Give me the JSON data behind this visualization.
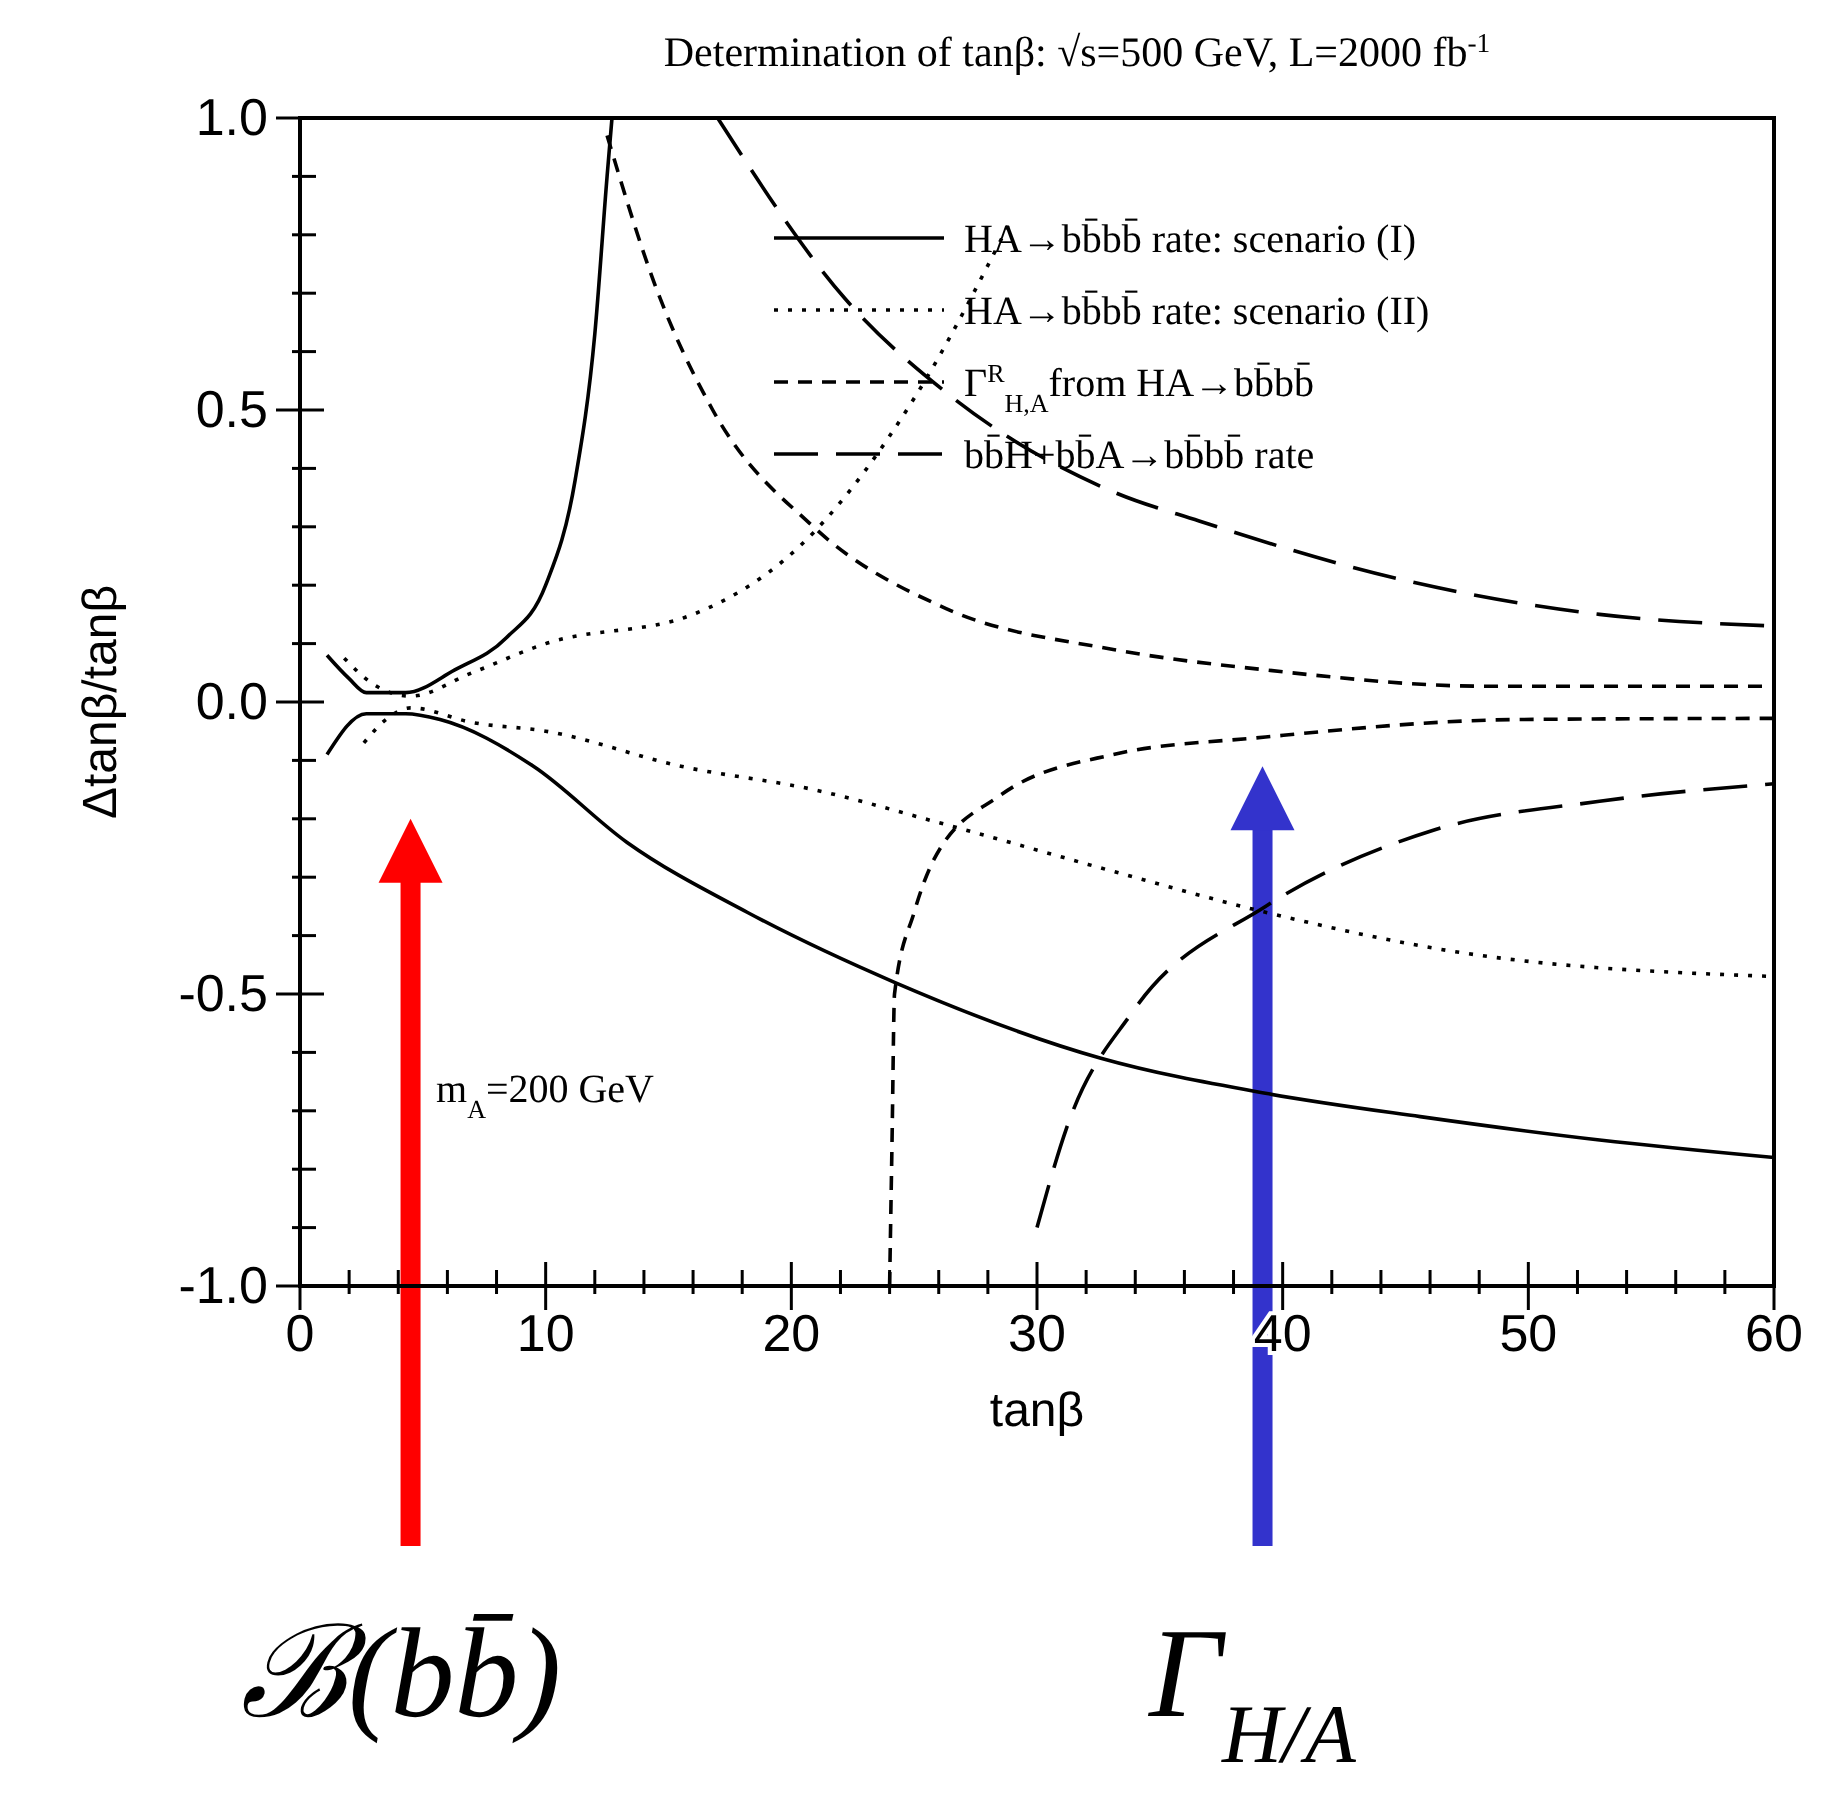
{
  "chart_data": {
    "type": "line",
    "title": "Determination of tanβ: √s=500 GeV, L=2000 fb$^{-1}$",
    "xlabel": "tanβ",
    "ylabel": "Δtanβ/tanβ",
    "xlim": [
      0,
      60
    ],
    "ylim": [
      -1,
      1
    ],
    "xticks": [
      0,
      {
        "value": 2,
        "label": null
      },
      {
        "value": 4,
        "label": null
      },
      {
        "value": 6,
        "label": null
      },
      {
        "value": 8,
        "label": null
      },
      10,
      {
        "value": 12,
        "label": null
      },
      {
        "value": 14,
        "label": null
      },
      {
        "value": 16,
        "label": null
      },
      {
        "value": 18,
        "label": null
      },
      20,
      {
        "value": 22,
        "label": null
      },
      {
        "value": 24,
        "label": null
      },
      {
        "value": 26,
        "label": null
      },
      {
        "value": 28,
        "label": null
      },
      30,
      {
        "value": 32,
        "label": null
      },
      {
        "value": 34,
        "label": null
      },
      {
        "value": 36,
        "label": null
      },
      {
        "value": 38,
        "label": null
      },
      40,
      {
        "value": 42,
        "label": null
      },
      {
        "value": 44,
        "label": null
      },
      {
        "value": 46,
        "label": null
      },
      {
        "value": 48,
        "label": null
      },
      50,
      {
        "value": 52,
        "label": null
      },
      {
        "value": 54,
        "label": null
      },
      {
        "value": 56,
        "label": null
      },
      {
        "value": 58,
        "label": null
      },
      60
    ],
    "yticks": [
      {
        "value": -1,
        "label": "-1.0"
      },
      {
        "value": -0.9,
        "label": null
      },
      {
        "value": -0.8,
        "label": null
      },
      {
        "value": -0.7,
        "label": null
      },
      {
        "value": -0.6,
        "label": null
      },
      {
        "value": -0.5,
        "label": "-0.5"
      },
      {
        "value": -0.4,
        "label": null
      },
      {
        "value": -0.3,
        "label": null
      },
      {
        "value": -0.2,
        "label": null
      },
      {
        "value": -0.1,
        "label": null
      },
      {
        "value": 0,
        "label": "0.0"
      },
      {
        "value": 0.1,
        "label": null
      },
      {
        "value": 0.2,
        "label": null
      },
      {
        "value": 0.3,
        "label": null
      },
      {
        "value": 0.4,
        "label": null
      },
      {
        "value": 0.5,
        "label": "0.5"
      },
      {
        "value": 0.6,
        "label": null
      },
      {
        "value": 0.7,
        "label": null
      },
      {
        "value": 0.8,
        "label": null
      },
      {
        "value": 0.9,
        "label": null
      },
      {
        "value": 1,
        "label": "1.0"
      }
    ],
    "legend": "top right",
    "grid": false,
    "marker": "none",
    "series": [
      {
        "name": "HA→bb̄bb̄ rate: scenario (I)",
        "color": "#000000",
        "line_style": "solid",
        "x": [
          1.1,
          2,
          2.7,
          4.3,
          6.3,
          8.4,
          10,
          11.2,
          12,
          12.5,
          12.7
        ],
        "values": [
          0.08,
          0.04,
          0.016,
          0.016,
          0.055,
          0.11,
          0.2,
          0.38,
          0.63,
          0.9,
          1.0
        ]
      },
      {
        "color": "#000000",
        "line_style": "solid",
        "x": [
          1.1,
          2.7,
          4.3,
          5.7,
          9.5,
          13.3,
          18.2,
          24.2,
          32.6,
          39.3,
          45.6,
          52.9,
          60
        ],
        "values": [
          -0.09,
          -0.02,
          -0.02,
          -0.03,
          -0.11,
          -0.24,
          -0.36,
          -0.48,
          -0.61,
          -0.67,
          -0.71,
          -0.75,
          -0.78
        ]
      },
      {
        "name": "HA→bb̄bb̄ rate: scenario (II)",
        "color": "#000000",
        "line_style": "dotted",
        "x": [
          1.8,
          3,
          4.5,
          7,
          10,
          16,
          20.9,
          25,
          29
        ],
        "values": [
          0.075,
          0.03,
          0.01,
          0.05,
          0.1,
          0.15,
          0.29,
          0.52,
          0.83
        ]
      },
      {
        "color": "#000000",
        "line_style": "dotted",
        "x": [
          2.6,
          3.5,
          4.5,
          7,
          10,
          15.5,
          20.9,
          26.3,
          33.1,
          39.3,
          47.4,
          60
        ],
        "values": [
          -0.07,
          -0.03,
          -0.01,
          -0.035,
          -0.05,
          -0.11,
          -0.15,
          -0.21,
          -0.29,
          -0.36,
          -0.43,
          -0.47
        ]
      },
      {
        "name": "Γ$^{R}$$_{H,A}$from HA→bb̄bb̄",
        "color": "#000000",
        "line_style": "dashed",
        "x": [
          12.5,
          14.4,
          16.8,
          20.9,
          26.3,
          33.1,
          39.3,
          48.3,
          60
        ],
        "values": [
          0.97,
          0.72,
          0.5,
          0.3,
          0.16,
          0.09,
          0.055,
          0.027,
          0.027
        ]
      },
      {
        "color": "#000000",
        "line_style": "dashed",
        "x": [
          24,
          24.1,
          24.2,
          25,
          25.8,
          28.5,
          33.1,
          39.3,
          49.6,
          60
        ],
        "values": [
          -1,
          -0.75,
          -0.5,
          -0.36,
          -0.27,
          -0.16,
          -0.09,
          -0.06,
          -0.03,
          -0.028
        ]
      },
      {
        "name": "bb̄H+bb̄A→bb̄bb̄ rate",
        "color": "#000000",
        "line_style": "longdash",
        "x": [
          17,
          22.2,
          26.3,
          33.1,
          36.6,
          44.8,
          52.9,
          60
        ],
        "values": [
          1.0,
          0.69,
          0.53,
          0.36,
          0.31,
          0.21,
          0.15,
          0.13
        ]
      },
      {
        "color": "#000000",
        "line_style": "longdash",
        "x": [
          30,
          31.2,
          33.9,
          39.3,
          46.1,
          52.9,
          60
        ],
        "values": [
          -0.9,
          -0.73,
          -0.53,
          -0.35,
          -0.22,
          -0.17,
          -0.14
        ]
      }
    ],
    "annotations": [
      "m$_{A}$=200 GeV",
      "ℬ(bb̄)",
      "Γ$_{H/A}$"
    ]
  }
}
